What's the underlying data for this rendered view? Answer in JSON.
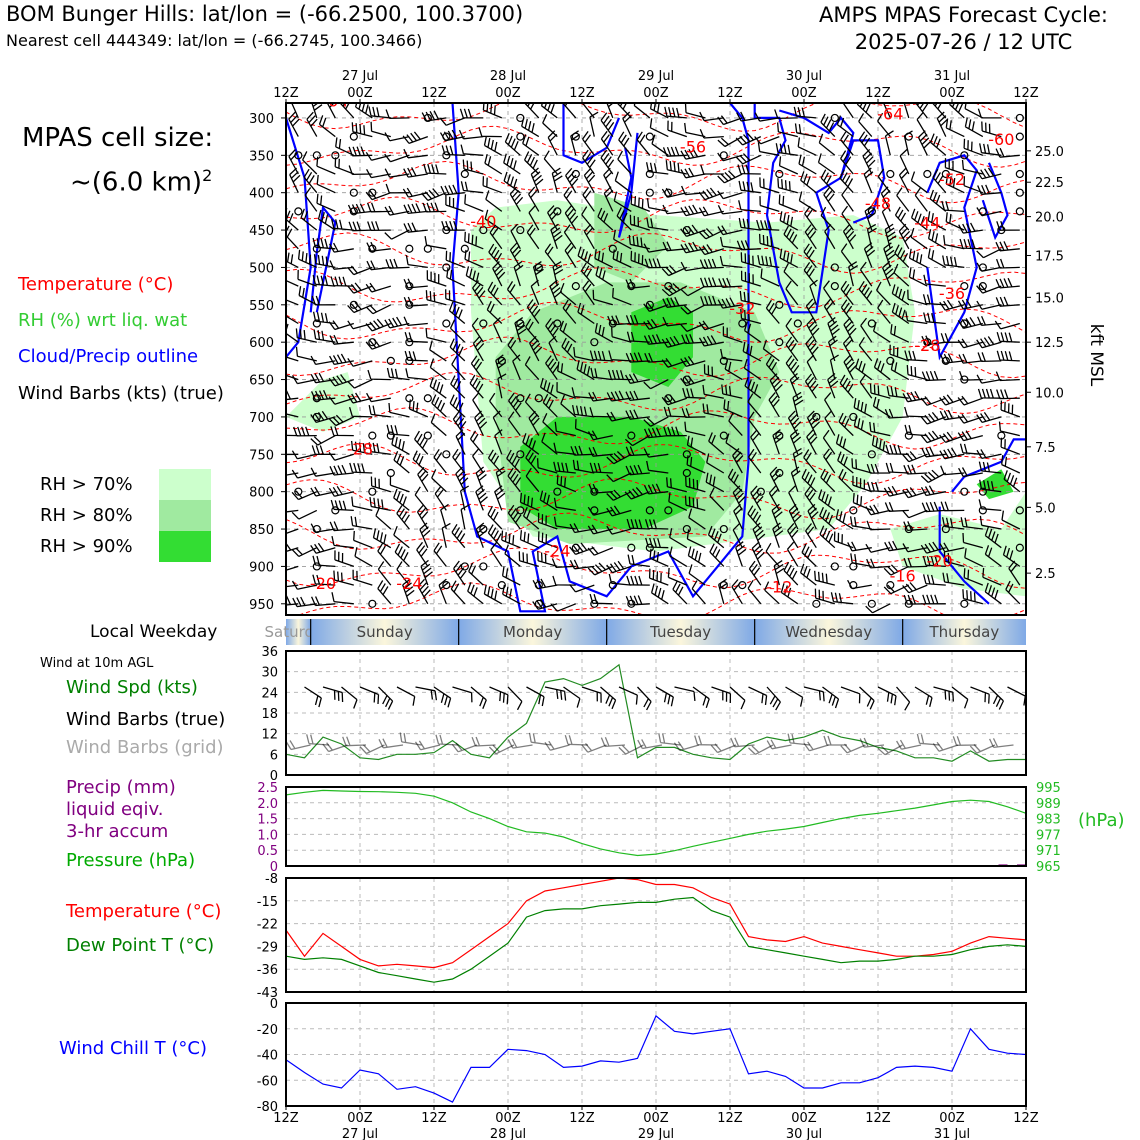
{
  "header": {
    "title_left": "BOM Bunger Hills: lat/lon = (-66.2500, 100.3700)",
    "subtitle_left": "Nearest cell 444349: lat/lon = (-66.2745, 100.3466)",
    "title_right_line1": "AMPS MPAS Forecast Cycle:",
    "title_right_line2": "2025-07-26 / 12 UTC"
  },
  "cell_size": {
    "line1": "MPAS cell size:",
    "line2": "~(6.0 km)",
    "sup": "2"
  },
  "legend": {
    "temperature": {
      "label": "Temperature (°C)",
      "color": "#ff0000"
    },
    "rh": {
      "label": "RH (%) wrt liq. wat",
      "color": "#33cc33"
    },
    "cloud": {
      "label": "Cloud/Precip outline",
      "color": "#0000ff"
    },
    "barbs": {
      "label": "Wind Barbs (kts) (true)",
      "color": "#000000"
    }
  },
  "rh_legend": [
    {
      "label": "RH > 70%",
      "color": "#ccffcc"
    },
    {
      "label": "RH > 80%",
      "color": "#a0eaa0"
    },
    {
      "label": "RH > 90%",
      "color": "#33dd33"
    }
  ],
  "weekday_label": "Local Weekday",
  "weekdays": [
    "Saturday",
    "Sunday",
    "Monday",
    "Tuesday",
    "Wednesday",
    "Thursday"
  ],
  "panel_labels": {
    "wind_header": "Wind at 10m AGL",
    "wind_spd": "Wind Spd (kts)",
    "wind_barbs_true": "Wind Barbs (true)",
    "wind_barbs_grid": "Wind Barbs (grid)",
    "precip1": "Precip (mm)",
    "precip2": "liquid eqiv.",
    "precip3": "3-hr accum",
    "pressure": "Pressure (hPa)",
    "pressure_unit": "(hPa)",
    "temperature": "Temperature (°C)",
    "dewpoint": "Dew Point T (°C)",
    "windchill": "Wind Chill T (°C)",
    "kft": "kft MSL"
  },
  "colors": {
    "temp": "#ff0000",
    "dew": "#008000",
    "wind": "#228b22",
    "pressure": "#22bb22",
    "precip": "#800080",
    "chill": "#0000ff"
  },
  "chart_data": [
    {
      "type": "heatmap",
      "name": "time-height cross section",
      "x_ticks_top": [
        "12Z",
        "00Z",
        "12Z",
        "00Z",
        "12Z",
        "00Z",
        "12Z",
        "00Z",
        "12Z",
        "00Z",
        "12Z"
      ],
      "x_dates": [
        "27 Jul",
        "28 Jul",
        "29 Jul",
        "30 Jul",
        "31 Jul"
      ],
      "y_ticks_hpa": [
        300,
        350,
        400,
        450,
        500,
        550,
        600,
        650,
        700,
        750,
        800,
        850,
        900,
        950
      ],
      "y_ticks_kft": [
        "25.0",
        "22.5",
        "20.0",
        "17.5",
        "15.0",
        "12.5",
        "10.0",
        "7.5",
        "5.0",
        "2.5"
      ],
      "y_kft_positions_hpa": [
        344,
        386,
        432,
        484,
        540,
        600,
        667,
        740,
        821,
        909
      ],
      "ylim": [
        280,
        965
      ],
      "temperature_labels": [
        {
          "text": "-64",
          "t": 8,
          "p": 285
        },
        {
          "text": "-64",
          "t": 98,
          "p": 302
        },
        {
          "text": "-56",
          "t": 66,
          "p": 346
        },
        {
          "text": "-60",
          "t": 116,
          "p": 336
        },
        {
          "text": "-52",
          "t": 108,
          "p": 390
        },
        {
          "text": "-48",
          "t": 96,
          "p": 422
        },
        {
          "text": "-44",
          "t": 104,
          "p": 448
        },
        {
          "text": "-40",
          "t": 32,
          "p": 446
        },
        {
          "text": "-36",
          "t": 108,
          "p": 542
        },
        {
          "text": "-32",
          "t": 74,
          "p": 562
        },
        {
          "text": "-28",
          "t": 104,
          "p": 612
        },
        {
          "text": "-28",
          "t": 12,
          "p": 750
        },
        {
          "text": "-24",
          "t": 44,
          "p": 887
        },
        {
          "text": "-24",
          "t": 20,
          "p": 930
        },
        {
          "text": "-20",
          "t": 6,
          "p": 930
        },
        {
          "text": "-20",
          "t": 106,
          "p": 900
        },
        {
          "text": "-16",
          "t": 100,
          "p": 920
        },
        {
          "text": "-12",
          "t": 80,
          "p": 935
        }
      ]
    },
    {
      "type": "line",
      "name": "wind speed",
      "x": [
        0,
        3,
        6,
        9,
        12,
        15,
        18,
        21,
        24,
        27,
        30,
        33,
        36,
        39,
        42,
        45,
        48,
        51,
        54,
        57,
        60,
        63,
        66,
        69,
        72,
        75,
        78,
        81,
        84,
        87,
        90,
        93,
        96,
        99,
        102,
        105,
        108,
        111,
        114,
        117,
        120
      ],
      "series": [
        {
          "name": "Wind Spd (kts)",
          "values": [
            6,
            5,
            11,
            9,
            5,
            4.5,
            6,
            6,
            6.5,
            10,
            6,
            5,
            11,
            15,
            27,
            28,
            26,
            28,
            32,
            5,
            8,
            8,
            6,
            5,
            4.5,
            9,
            11,
            10,
            11,
            13,
            11,
            10,
            8,
            7,
            5,
            5,
            4,
            7,
            4,
            4.5,
            4.5
          ]
        }
      ],
      "ylim": [
        0,
        36
      ],
      "y_ticks": [
        0,
        6,
        12,
        18,
        24,
        30,
        36
      ]
    },
    {
      "type": "line",
      "name": "pressure and precip",
      "x": [
        0,
        3,
        6,
        9,
        12,
        15,
        18,
        21,
        24,
        27,
        30,
        33,
        36,
        39,
        42,
        45,
        48,
        51,
        54,
        57,
        60,
        63,
        66,
        69,
        72,
        75,
        78,
        81,
        84,
        87,
        90,
        93,
        96,
        99,
        102,
        105,
        108,
        111,
        114,
        117,
        120
      ],
      "series": [
        {
          "name": "Pressure (hPa)",
          "values": [
            992,
            993,
            993.7,
            993.5,
            993.3,
            993.2,
            993,
            992.6,
            991.5,
            989,
            985.5,
            983,
            980,
            978,
            977.5,
            976,
            973.5,
            971.5,
            970,
            969,
            969.5,
            970.8,
            972.5,
            974,
            975.5,
            977,
            978.2,
            979,
            980,
            981.5,
            983,
            984.2,
            985,
            986,
            987,
            988.2,
            989.5,
            990,
            989.5,
            987.5,
            985
          ]
        },
        {
          "name": "Precip (mm)",
          "values": [
            0,
            0,
            0,
            0,
            0,
            0,
            0,
            0,
            0,
            0,
            0,
            0,
            0,
            0,
            0,
            0,
            0,
            0,
            0,
            0,
            0,
            0,
            0,
            0,
            0,
            0,
            0,
            0,
            0,
            0,
            0,
            0,
            0,
            0,
            0,
            0,
            0,
            0,
            0,
            0.05,
            0.05
          ]
        }
      ],
      "ylim_precip": [
        0,
        2.5
      ],
      "y_ticks_precip": [
        "0",
        "0.5",
        "1.0",
        "1.5",
        "2.0",
        "2.5"
      ],
      "ylim_pressure": [
        965,
        995
      ],
      "y_ticks_pressure": [
        "965",
        "971",
        "977",
        "983",
        "989",
        "995"
      ]
    },
    {
      "type": "line",
      "name": "temperature and dew point",
      "x": [
        0,
        3,
        6,
        9,
        12,
        15,
        18,
        21,
        24,
        27,
        30,
        33,
        36,
        39,
        42,
        45,
        48,
        51,
        54,
        57,
        60,
        63,
        66,
        69,
        72,
        75,
        78,
        81,
        84,
        87,
        90,
        93,
        96,
        99,
        102,
        105,
        108,
        111,
        114,
        117,
        120
      ],
      "series": [
        {
          "name": "Temperature (°C)",
          "values": [
            -24,
            -32,
            -25,
            -29,
            -33,
            -35,
            -34.5,
            -35,
            -35.5,
            -34,
            -30,
            -26,
            -22,
            -15,
            -12,
            -11,
            -10,
            -9,
            -8,
            -8.5,
            -10,
            -10,
            -11,
            -14,
            -16,
            -26,
            -27,
            -27.5,
            -26,
            -28,
            -29,
            -30,
            -31,
            -32,
            -32,
            -31.5,
            -30.5,
            -28,
            -26,
            -26.5,
            -27
          ]
        },
        {
          "name": "Dew Point T (°C)",
          "values": [
            -32,
            -33,
            -32.5,
            -33,
            -35,
            -37,
            -38,
            -39,
            -40,
            -39,
            -36,
            -32,
            -28,
            -20,
            -18,
            -17.5,
            -17.5,
            -16.5,
            -16,
            -15.5,
            -15.5,
            -14.5,
            -14,
            -18,
            -20,
            -29,
            -30,
            -31,
            -32,
            -33,
            -34,
            -33.5,
            -33.5,
            -33,
            -32,
            -32,
            -31.5,
            -30,
            -29,
            -28.5,
            -29
          ]
        }
      ],
      "ylim": [
        -43,
        -8
      ],
      "y_ticks": [
        -8,
        -15,
        -22,
        -29,
        -36,
        -43
      ]
    },
    {
      "type": "line",
      "name": "wind chill",
      "x": [
        0,
        3,
        6,
        9,
        12,
        15,
        18,
        21,
        24,
        27,
        30,
        33,
        36,
        39,
        42,
        45,
        48,
        51,
        54,
        57,
        60,
        63,
        66,
        69,
        72,
        75,
        78,
        81,
        84,
        87,
        90,
        93,
        96,
        99,
        102,
        105,
        108,
        111,
        114,
        117,
        120
      ],
      "series": [
        {
          "name": "Wind Chill T (°C)",
          "values": [
            -44,
            -54,
            -63,
            -66,
            -52,
            -55,
            -67,
            -65,
            -70,
            -77,
            -50,
            -50,
            -36,
            -37,
            -40,
            -50,
            -49,
            -45,
            -46,
            -43,
            -10,
            -22,
            -24,
            -22,
            -20,
            -55,
            -53,
            -57,
            -66,
            -66,
            -62,
            -62,
            -58,
            -50,
            -49,
            -50,
            -53,
            -20,
            -36,
            -39,
            -40
          ]
        }
      ],
      "ylim": [
        -80,
        0
      ],
      "y_ticks": [
        0,
        -20,
        -40,
        -60,
        -80
      ]
    }
  ],
  "x_axis_bottom": {
    "ticks": [
      "12Z",
      "00Z",
      "12Z",
      "00Z",
      "12Z",
      "00Z",
      "12Z",
      "00Z",
      "12Z",
      "00Z",
      "12Z"
    ],
    "dates": [
      "27 Jul",
      "28 Jul",
      "29 Jul",
      "30 Jul",
      "31 Jul"
    ]
  }
}
